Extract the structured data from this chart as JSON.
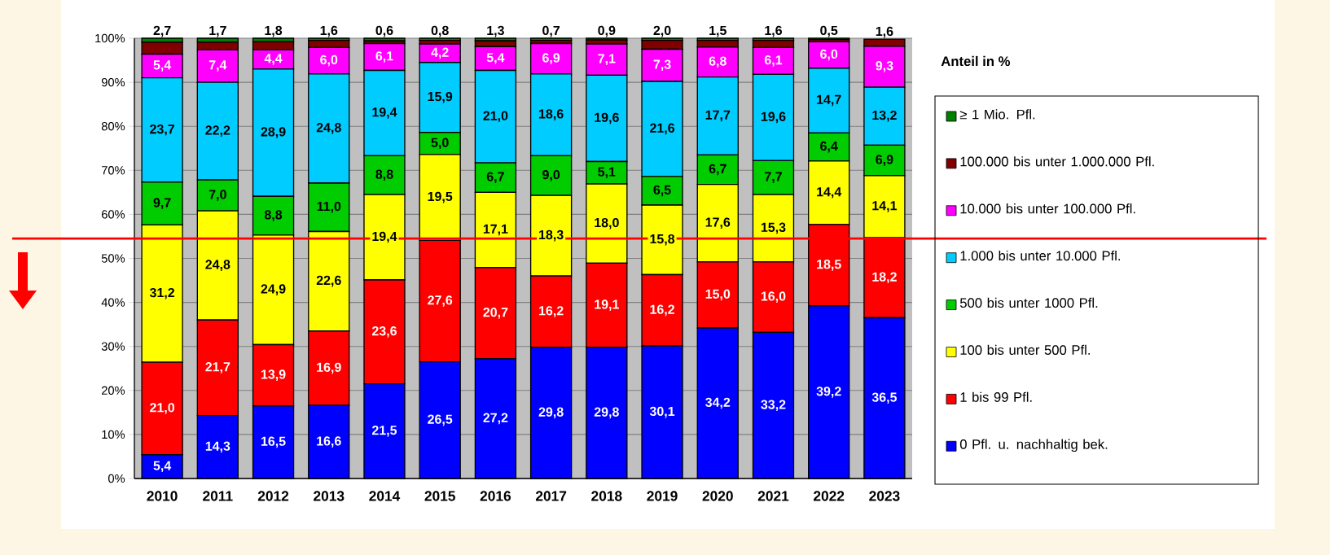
{
  "chart_data": {
    "type": "bar",
    "stacked": true,
    "legend_title": "Anteil in %",
    "legend": "right",
    "grid": "y",
    "categories": [
      "2010",
      "2011",
      "2012",
      "2013",
      "2014",
      "2015",
      "2016",
      "2017",
      "2018",
      "2019",
      "2020",
      "2021",
      "2022",
      "2023"
    ],
    "ylim": [
      0,
      100
    ],
    "yticks": [
      {
        "value": 0,
        "label": "0%"
      },
      {
        "value": 10,
        "label": "10%"
      },
      {
        "value": 20,
        "label": "20%"
      },
      {
        "value": 30,
        "label": "30%"
      },
      {
        "value": 40,
        "label": "40%"
      },
      {
        "value": 50,
        "label": "50%"
      },
      {
        "value": 60,
        "label": "60%"
      },
      {
        "value": 70,
        "label": "70%"
      },
      {
        "value": 80,
        "label": "80%"
      },
      {
        "value": 90,
        "label": "90%"
      },
      {
        "value": 100,
        "label": "100%"
      }
    ],
    "ref_lines": [
      {
        "axis": "y",
        "value": 54.5,
        "color": "#ff0000"
      }
    ],
    "series": [
      {
        "name": "0 Pfl. u. nachhaltig bek.",
        "color": "#0000ff",
        "values": [
          5.4,
          14.3,
          16.5,
          16.6,
          21.5,
          26.5,
          27.2,
          29.8,
          29.8,
          30.1,
          34.2,
          33.2,
          39.2,
          36.5
        ],
        "value_labels": [
          "5,4",
          "14,3",
          "16,5",
          "16,6",
          "21,5",
          "26,5",
          "27,2",
          "29,8",
          "29,8",
          "30,1",
          "34,2",
          "33,2",
          "39,2",
          "36,5"
        ]
      },
      {
        "name": "1 bis 99 Pfl.",
        "color": "#ff0000",
        "values": [
          21.0,
          21.7,
          13.9,
          16.9,
          23.6,
          27.6,
          20.7,
          16.2,
          19.1,
          16.2,
          15.0,
          16.0,
          18.5,
          18.2
        ],
        "value_labels": [
          "21,0",
          "21,7",
          "13,9",
          "16,9",
          "23,6",
          "27,6",
          "20,7",
          "16,2",
          "19,1",
          "16,2",
          "15,0",
          "16,0",
          "18,5",
          "18,2"
        ]
      },
      {
        "name": "100 bis unter 500 Pfl.",
        "color": "#ffff00",
        "values": [
          31.2,
          24.8,
          24.9,
          22.6,
          19.4,
          19.5,
          17.1,
          18.3,
          18.0,
          15.8,
          17.6,
          15.3,
          14.4,
          14.1
        ],
        "value_labels": [
          "31,2",
          "24,8",
          "24,9",
          "22,6",
          "19,4",
          "19,5",
          "17,1",
          "18,3",
          "18,0",
          "15,8",
          "17,6",
          "15,3",
          "14,4",
          "14,1"
        ]
      },
      {
        "name": "500 bis unter 1000 Pfl.",
        "color": "#00cc00",
        "values": [
          9.7,
          7.0,
          8.8,
          11.0,
          8.8,
          5.0,
          6.7,
          9.0,
          5.1,
          6.5,
          6.7,
          7.7,
          6.4,
          6.9
        ],
        "value_labels": [
          "9,7",
          "7,0",
          "8,8",
          "11,0",
          "8,8",
          "5,0",
          "6,7",
          "9,0",
          "5,1",
          "6,5",
          "6,7",
          "7,7",
          "6,4",
          "6,9"
        ]
      },
      {
        "name": "1.000 bis unter 10.000 Pfl.",
        "color": "#00ccff",
        "values": [
          23.7,
          22.2,
          28.9,
          24.8,
          19.4,
          15.9,
          21.0,
          18.6,
          19.6,
          21.6,
          17.7,
          19.6,
          14.7,
          13.2
        ],
        "value_labels": [
          "23,7",
          "22,2",
          "28,9",
          "24,8",
          "19,4",
          "15,9",
          "21,0",
          "18,6",
          "19,6",
          "21,6",
          "17,7",
          "19,6",
          "14,7",
          "13,2"
        ]
      },
      {
        "name": "10.000 bis unter 100.000 Pfl.",
        "color": "#ff00ff",
        "values": [
          5.4,
          7.4,
          4.4,
          6.0,
          6.1,
          4.2,
          5.4,
          6.9,
          7.1,
          7.3,
          6.8,
          6.1,
          6.0,
          9.3
        ],
        "value_labels": [
          "5,4",
          "7,4",
          "4,4",
          "6,0",
          "6,1",
          "4,2",
          "5,4",
          "6,9",
          "7,1",
          "7,3",
          "6,8",
          "6,1",
          "6,0",
          "9,3"
        ]
      },
      {
        "name": "100.000 bis unter 1.000.000 Pfl.",
        "color": "#800000",
        "values": [
          2.7,
          1.7,
          1.8,
          1.6,
          0.6,
          0.8,
          1.3,
          0.7,
          0.9,
          2.0,
          1.5,
          1.6,
          0.5,
          1.6
        ],
        "value_labels": [
          "2,7",
          "1,7",
          "1,8",
          "1,6",
          "0,6",
          "0,8",
          "1,3",
          "0,7",
          "0,9",
          "2,0",
          "1,5",
          "1,6",
          "0,5",
          "1,6"
        ]
      },
      {
        "name": "≥ 1 Mio. Pfl.",
        "color": "#008000",
        "values": [
          0.9,
          0.9,
          0.8,
          0.5,
          0.6,
          0.5,
          0.6,
          0.5,
          0.4,
          0.5,
          0.5,
          0.5,
          0.3,
          null
        ]
      }
    ]
  }
}
